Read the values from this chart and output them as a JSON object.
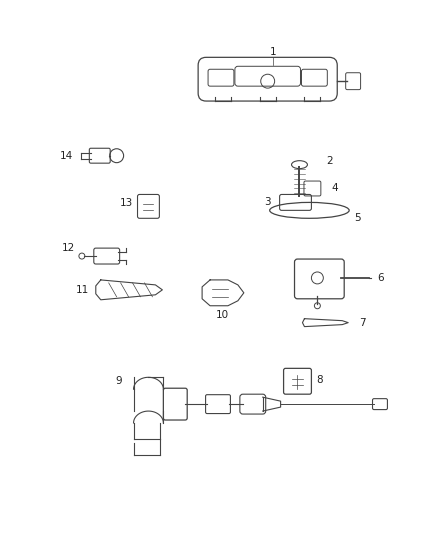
{
  "background_color": "#ffffff",
  "line_color": "#444444",
  "label_color": "#222222",
  "figsize": [
    4.38,
    5.33
  ],
  "dpi": 100
}
